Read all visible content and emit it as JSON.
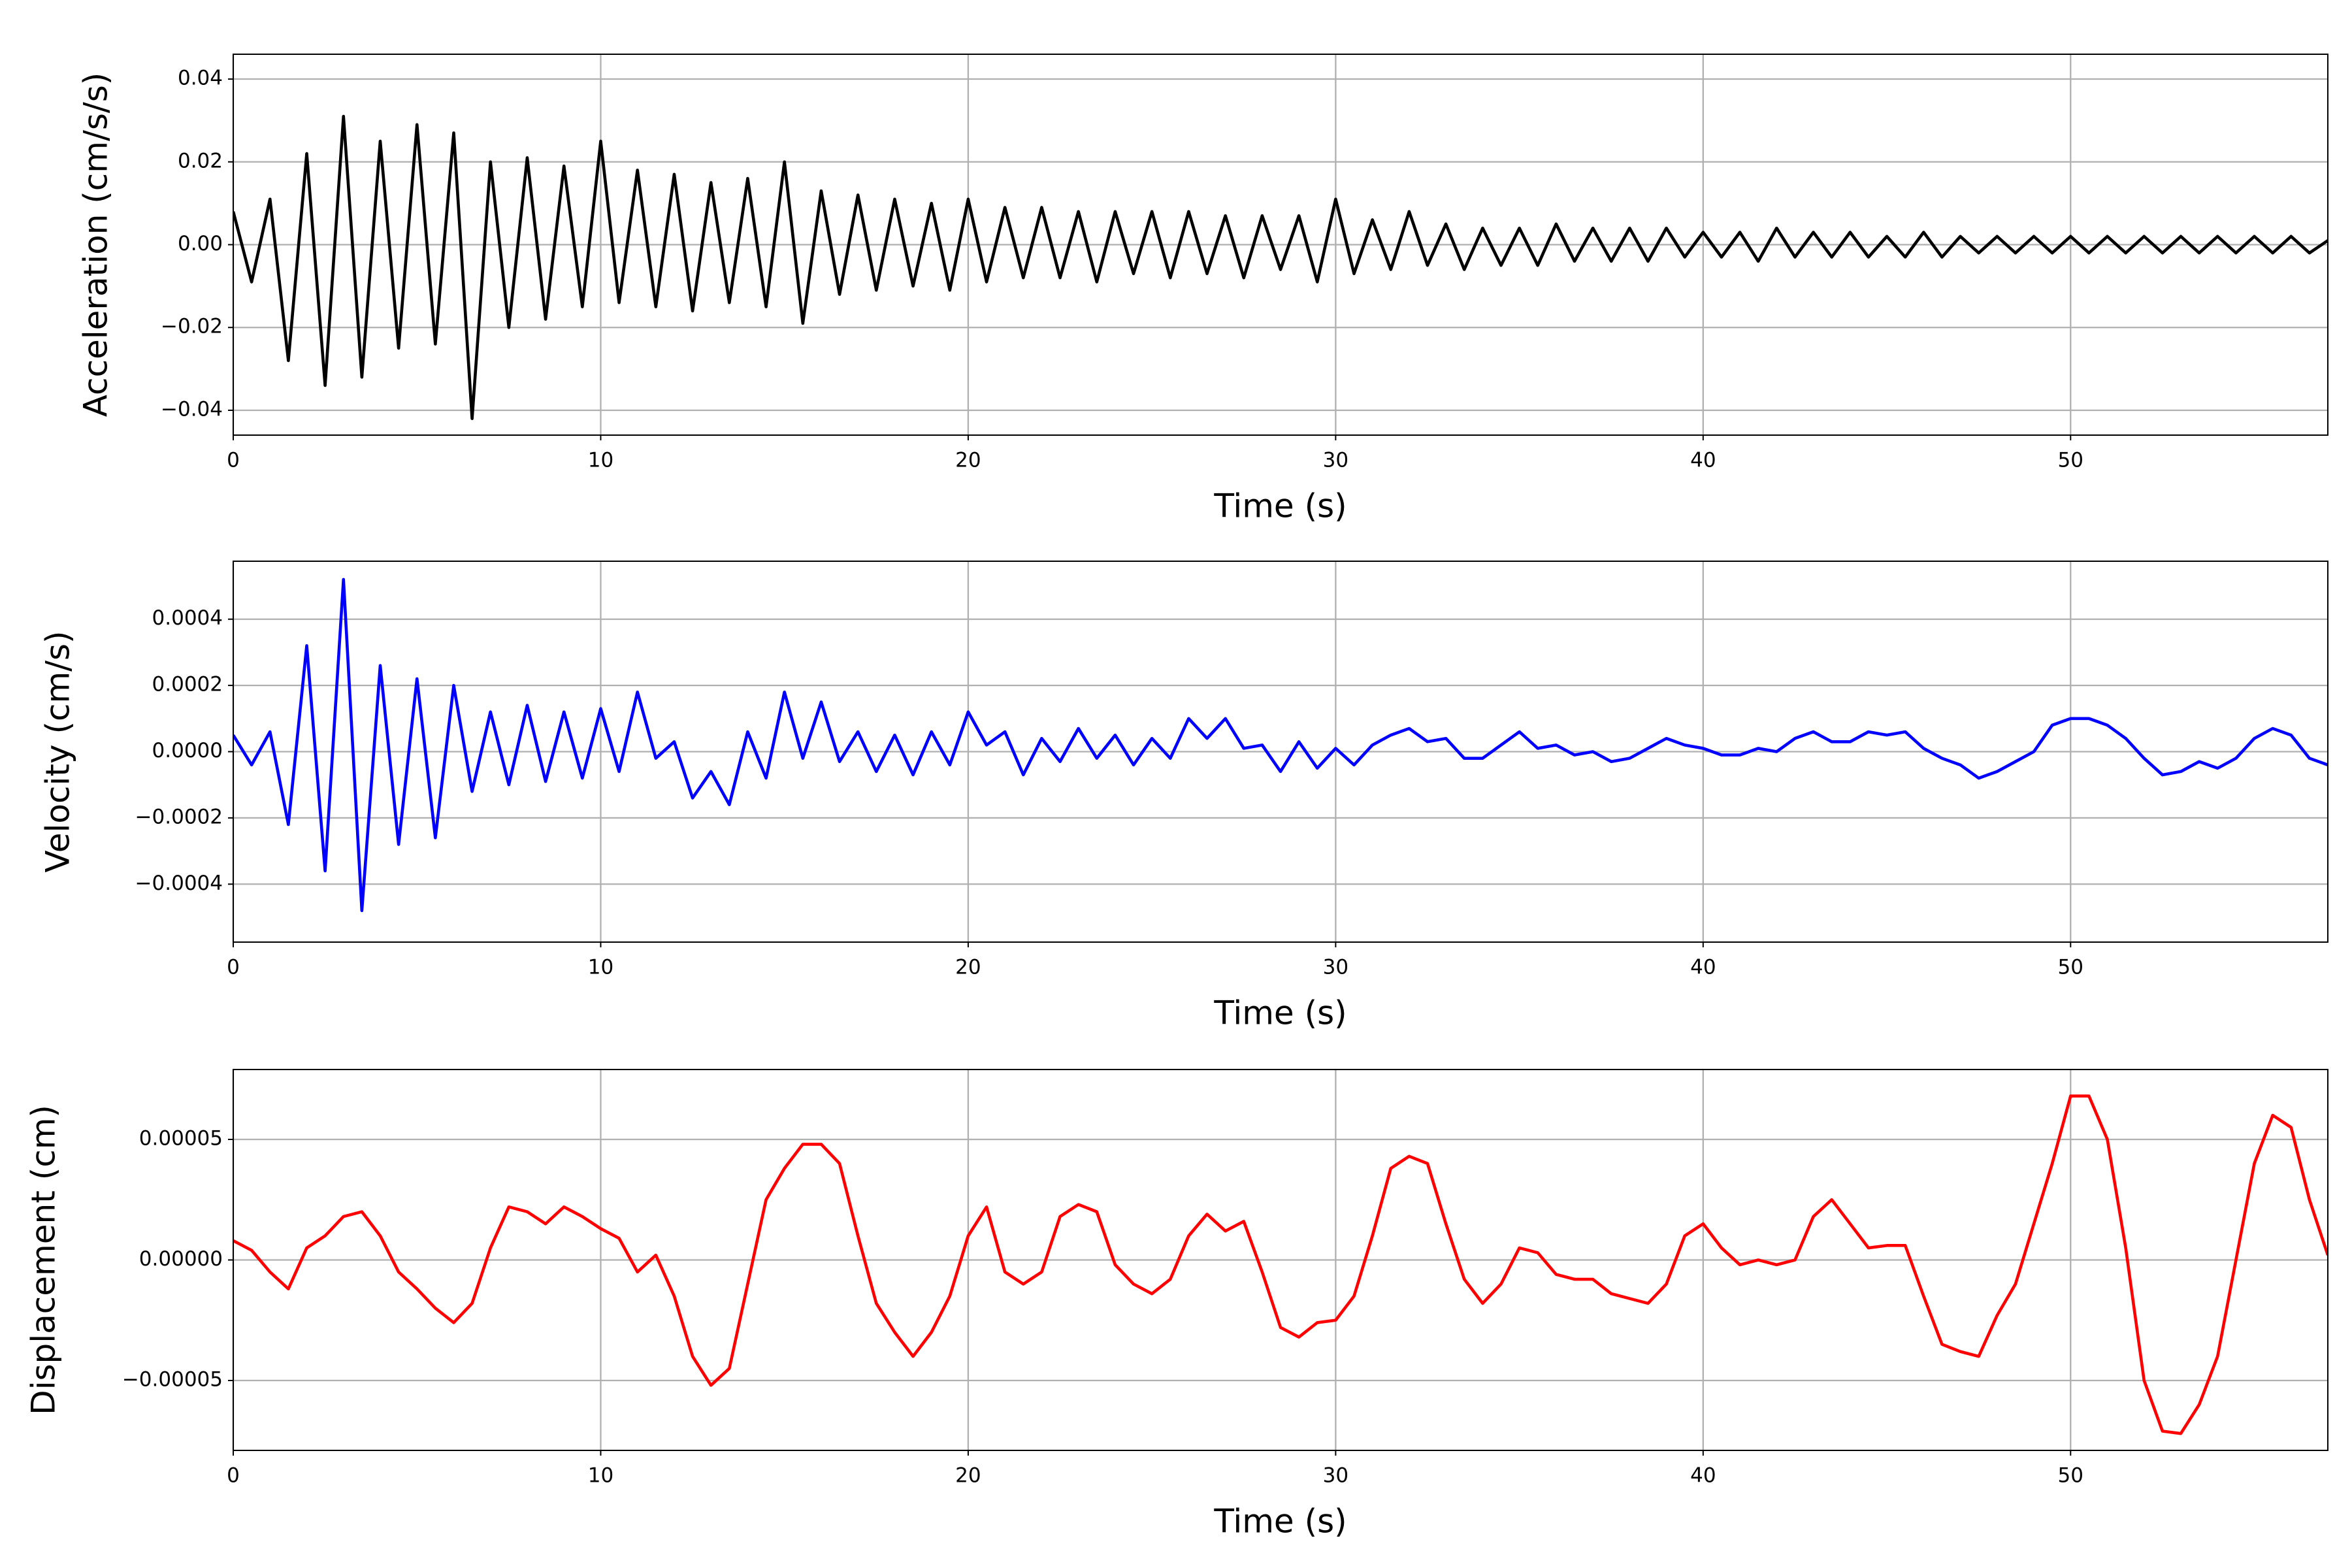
{
  "chart_data": [
    {
      "type": "line",
      "xlabel": "Time (s)",
      "ylabel": "Acceleration (cm/s/s)",
      "color": "#000000",
      "grid": true,
      "xlim": [
        0,
        57
      ],
      "xticks": [
        0,
        10,
        20,
        30,
        40,
        50
      ],
      "ylim": [
        -0.046,
        0.046
      ],
      "yticks": [
        {
          "value": -0.04,
          "label": "−0.04"
        },
        {
          "value": -0.02,
          "label": "−0.02"
        },
        {
          "value": 0,
          "label": "0.00"
        },
        {
          "value": 0.02,
          "label": "0.02"
        },
        {
          "value": 0.04,
          "label": "0.04"
        }
      ],
      "x": [
        0,
        0.5,
        1,
        1.5,
        2,
        2.5,
        3,
        3.5,
        4,
        4.5,
        5,
        5.5,
        6,
        6.5,
        7,
        7.5,
        8,
        8.5,
        9,
        9.5,
        10,
        10.5,
        11,
        11.5,
        12,
        12.5,
        13,
        13.5,
        14,
        14.5,
        15,
        15.5,
        16,
        16.5,
        17,
        17.5,
        18,
        18.5,
        19,
        19.5,
        20,
        20.5,
        21,
        21.5,
        22,
        22.5,
        23,
        23.5,
        24,
        24.5,
        25,
        25.5,
        26,
        26.5,
        27,
        27.5,
        28,
        28.5,
        29,
        29.5,
        30,
        30.5,
        31,
        31.5,
        32,
        32.5,
        33,
        33.5,
        34,
        34.5,
        35,
        35.5,
        36,
        36.5,
        37,
        37.5,
        38,
        38.5,
        39,
        39.5,
        40,
        40.5,
        41,
        41.5,
        42,
        42.5,
        43,
        43.5,
        44,
        44.5,
        45,
        45.5,
        46,
        46.5,
        47,
        47.5,
        48,
        48.5,
        49,
        49.5,
        50,
        50.5,
        51,
        51.5,
        52,
        52.5,
        53,
        53.5,
        54,
        54.5,
        55,
        55.5,
        56,
        56.5,
        57
      ],
      "values": [
        0.008,
        -0.009,
        0.011,
        -0.028,
        0.022,
        -0.034,
        0.031,
        -0.032,
        0.025,
        -0.025,
        0.029,
        -0.024,
        0.027,
        -0.042,
        0.02,
        -0.02,
        0.021,
        -0.018,
        0.019,
        -0.015,
        0.025,
        -0.014,
        0.018,
        -0.015,
        0.017,
        -0.016,
        0.015,
        -0.014,
        0.016,
        -0.015,
        0.02,
        -0.019,
        0.013,
        -0.012,
        0.012,
        -0.011,
        0.011,
        -0.01,
        0.01,
        -0.011,
        0.011,
        -0.009,
        0.009,
        -0.008,
        0.009,
        -0.008,
        0.008,
        -0.009,
        0.008,
        -0.007,
        0.008,
        -0.008,
        0.008,
        -0.007,
        0.007,
        -0.008,
        0.007,
        -0.006,
        0.007,
        -0.009,
        0.011,
        -0.007,
        0.006,
        -0.006,
        0.008,
        -0.005,
        0.005,
        -0.006,
        0.004,
        -0.005,
        0.004,
        -0.005,
        0.005,
        -0.004,
        0.004,
        -0.004,
        0.004,
        -0.004,
        0.004,
        -0.003,
        0.003,
        -0.003,
        0.003,
        -0.004,
        0.004,
        -0.003,
        0.003,
        -0.003,
        0.003,
        -0.003,
        0.002,
        -0.003,
        0.003,
        -0.003,
        0.002,
        -0.002,
        0.002,
        -0.002,
        0.002,
        -0.002,
        0.002,
        -0.002,
        0.002,
        -0.002,
        0.002,
        -0.002,
        0.002,
        -0.002,
        0.002,
        -0.002,
        0.002,
        -0.002,
        0.002,
        -0.002,
        0.001
      ]
    },
    {
      "type": "line",
      "xlabel": "Time (s)",
      "ylabel": "Velocity (cm/s)",
      "color": "#0000ff",
      "grid": true,
      "xlim": [
        0,
        57
      ],
      "xticks": [
        0,
        10,
        20,
        30,
        40,
        50
      ],
      "ylim": [
        -0.000575,
        0.000575
      ],
      "yticks": [
        {
          "value": -0.0004,
          "label": "−0.0004"
        },
        {
          "value": -0.0002,
          "label": "−0.0002"
        },
        {
          "value": 0,
          "label": "0.0000"
        },
        {
          "value": 0.0002,
          "label": "0.0002"
        },
        {
          "value": 0.0004,
          "label": "0.0004"
        }
      ],
      "x": [
        0,
        0.5,
        1,
        1.5,
        2,
        2.5,
        3,
        3.5,
        4,
        4.5,
        5,
        5.5,
        6,
        6.5,
        7,
        7.5,
        8,
        8.5,
        9,
        9.5,
        10,
        10.5,
        11,
        11.5,
        12,
        12.5,
        13,
        13.5,
        14,
        14.5,
        15,
        15.5,
        16,
        16.5,
        17,
        17.5,
        18,
        18.5,
        19,
        19.5,
        20,
        20.5,
        21,
        21.5,
        22,
        22.5,
        23,
        23.5,
        24,
        24.5,
        25,
        25.5,
        26,
        26.5,
        27,
        27.5,
        28,
        28.5,
        29,
        29.5,
        30,
        30.5,
        31,
        31.5,
        32,
        32.5,
        33,
        33.5,
        34,
        34.5,
        35,
        35.5,
        36,
        36.5,
        37,
        37.5,
        38,
        38.5,
        39,
        39.5,
        40,
        40.5,
        41,
        41.5,
        42,
        42.5,
        43,
        43.5,
        44,
        44.5,
        45,
        45.5,
        46,
        46.5,
        47,
        47.5,
        48,
        48.5,
        49,
        49.5,
        50,
        50.5,
        51,
        51.5,
        52,
        52.5,
        53,
        53.5,
        54,
        54.5,
        55,
        55.5,
        56,
        56.5,
        57
      ],
      "values": [
        5e-05,
        -4e-05,
        6e-05,
        -0.00022,
        0.00032,
        -0.00036,
        0.00052,
        -0.00048,
        0.00026,
        -0.00028,
        0.00022,
        -0.00026,
        0.0002,
        -0.00012,
        0.00012,
        -0.0001,
        0.00014,
        -9e-05,
        0.00012,
        -8e-05,
        0.00013,
        -6e-05,
        0.00018,
        -2e-05,
        3e-05,
        -0.00014,
        -6e-05,
        -0.00016,
        6e-05,
        -8e-05,
        0.00018,
        -2e-05,
        0.00015,
        -3e-05,
        6e-05,
        -6e-05,
        5e-05,
        -7e-05,
        6e-05,
        -4e-05,
        0.00012,
        2e-05,
        6e-05,
        -7e-05,
        4e-05,
        -3e-05,
        7e-05,
        -2e-05,
        5e-05,
        -4e-05,
        4e-05,
        -2e-05,
        0.0001,
        4e-05,
        0.0001,
        1e-05,
        2e-05,
        -6e-05,
        3e-05,
        -5e-05,
        1e-05,
        -4e-05,
        2e-05,
        5e-05,
        7e-05,
        3e-05,
        4e-05,
        -2e-05,
        -2e-05,
        2e-05,
        6e-05,
        1e-05,
        2e-05,
        -1e-05,
        0,
        -3e-05,
        -2e-05,
        1e-05,
        4e-05,
        2e-05,
        1e-05,
        -1e-05,
        -1e-05,
        1e-05,
        0,
        4e-05,
        6e-05,
        3e-05,
        3e-05,
        6e-05,
        5e-05,
        6e-05,
        1e-05,
        -2e-05,
        -4e-05,
        -8e-05,
        -6e-05,
        -3e-05,
        0,
        8e-05,
        0.0001,
        0.0001,
        8e-05,
        4e-05,
        -2e-05,
        -7e-05,
        -6e-05,
        -3e-05,
        -5e-05,
        -2e-05,
        4e-05,
        7e-05,
        5e-05,
        -2e-05,
        -4e-05
      ]
    },
    {
      "type": "line",
      "xlabel": "Time (s)",
      "ylabel": "Displacement (cm)",
      "color": "#ff0000",
      "grid": true,
      "xlim": [
        0,
        57
      ],
      "xticks": [
        0,
        10,
        20,
        30,
        40,
        50
      ],
      "ylim": [
        -7.9e-05,
        7.9e-05
      ],
      "yticks": [
        {
          "value": -5e-05,
          "label": "−0.00005"
        },
        {
          "value": 0,
          "label": "0.00000"
        },
        {
          "value": 5e-05,
          "label": "0.00005"
        }
      ],
      "x": [
        0,
        0.5,
        1,
        1.5,
        2,
        2.5,
        3,
        3.5,
        4,
        4.5,
        5,
        5.5,
        6,
        6.5,
        7,
        7.5,
        8,
        8.5,
        9,
        9.5,
        10,
        10.5,
        11,
        11.5,
        12,
        12.5,
        13,
        13.5,
        14,
        14.5,
        15,
        15.5,
        16,
        16.5,
        17,
        17.5,
        18,
        18.5,
        19,
        19.5,
        20,
        20.5,
        21,
        21.5,
        22,
        22.5,
        23,
        23.5,
        24,
        24.5,
        25,
        25.5,
        26,
        26.5,
        27,
        27.5,
        28,
        28.5,
        29,
        29.5,
        30,
        30.5,
        31,
        31.5,
        32,
        32.5,
        33,
        33.5,
        34,
        34.5,
        35,
        35.5,
        36,
        36.5,
        37,
        37.5,
        38,
        38.5,
        39,
        39.5,
        40,
        40.5,
        41,
        41.5,
        42,
        42.5,
        43,
        43.5,
        44,
        44.5,
        45,
        45.5,
        46,
        46.5,
        47,
        47.5,
        48,
        48.5,
        49,
        49.5,
        50,
        50.5,
        51,
        51.5,
        52,
        52.5,
        53,
        53.5,
        54,
        54.5,
        55,
        55.5,
        56,
        56.5,
        57
      ],
      "values": [
        8e-06,
        4e-06,
        -5e-06,
        -1.2e-05,
        5e-06,
        1e-05,
        1.8e-05,
        2e-05,
        1e-05,
        -5e-06,
        -1.2e-05,
        -2e-05,
        -2.6e-05,
        -1.8e-05,
        5e-06,
        2.2e-05,
        2e-05,
        1.5e-05,
        2.2e-05,
        1.8e-05,
        1.3e-05,
        9e-06,
        -5e-06,
        2e-06,
        -1.5e-05,
        -4e-05,
        -5.2e-05,
        -4.5e-05,
        -1e-05,
        2.5e-05,
        3.8e-05,
        4.8e-05,
        4.8e-05,
        4e-05,
        1e-05,
        -1.8e-05,
        -3e-05,
        -4e-05,
        -3e-05,
        -1.5e-05,
        1e-05,
        2.2e-05,
        -5e-06,
        -1e-05,
        -5e-06,
        1.8e-05,
        2.3e-05,
        2e-05,
        -2e-06,
        -1e-05,
        -1.4e-05,
        -8e-06,
        1e-05,
        1.9e-05,
        1.2e-05,
        1.6e-05,
        -5e-06,
        -2.8e-05,
        -3.2e-05,
        -2.6e-05,
        -2.5e-05,
        -1.5e-05,
        1e-05,
        3.8e-05,
        4.3e-05,
        4e-05,
        1.5e-05,
        -8e-06,
        -1.8e-05,
        -1e-05,
        5e-06,
        3e-06,
        -6e-06,
        -8e-06,
        -8e-06,
        -1.4e-05,
        -1.6e-05,
        -1.8e-05,
        -1e-05,
        1e-05,
        1.5e-05,
        5e-06,
        -2e-06,
        0,
        -2e-06,
        0,
        1.8e-05,
        2.5e-05,
        1.5e-05,
        5e-06,
        6e-06,
        6e-06,
        -1.5e-05,
        -3.5e-05,
        -3.8e-05,
        -4e-05,
        -2.3e-05,
        -1e-05,
        1.5e-05,
        4e-05,
        6.8e-05,
        6.8e-05,
        5e-05,
        5e-06,
        -5e-05,
        -7.1e-05,
        -7.2e-05,
        -6e-05,
        -4e-05,
        0,
        4e-05,
        6e-05,
        5.5e-05,
        2.5e-05,
        2e-06
      ]
    }
  ]
}
